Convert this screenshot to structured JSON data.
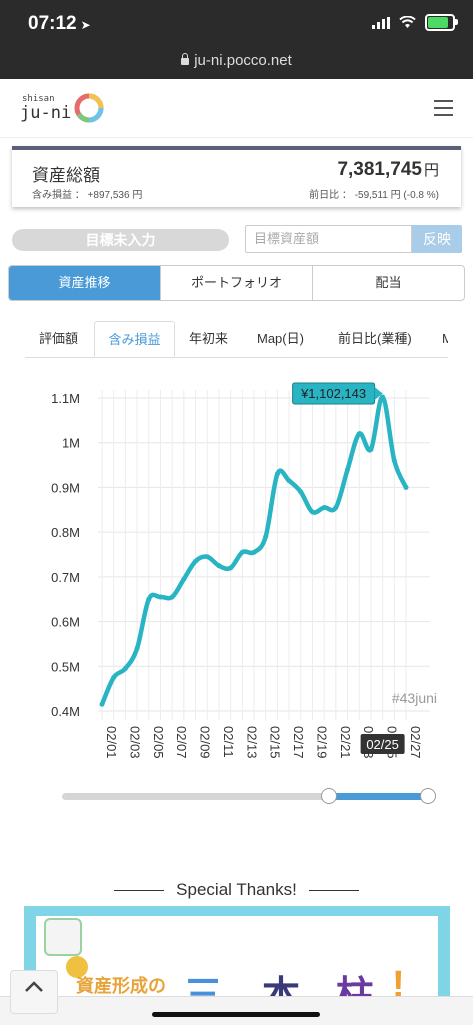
{
  "status_bar": {
    "time": "07:12",
    "url": "ju-ni.pocco.net"
  },
  "header": {
    "logo_small": "shisan",
    "logo_main": "ju-ni"
  },
  "summary": {
    "label": "資産総額",
    "value": "7,381,745",
    "unit": "円",
    "gain_text": "含み損益 ： +897,536 円",
    "diff_text": "前日比 ： -59,511 円 (-0.8 %)"
  },
  "target": {
    "pill_label": "目標未入力",
    "input_placeholder": "目標資産額",
    "button_label": "反映"
  },
  "main_tabs": [
    {
      "label": "資産推移",
      "active": true
    },
    {
      "label": "ポートフォリオ",
      "active": false
    },
    {
      "label": "配当",
      "active": false
    }
  ],
  "sub_tabs": [
    {
      "label": "評価額",
      "active": false
    },
    {
      "label": "含み損益",
      "active": true
    },
    {
      "label": "年初来",
      "active": false
    },
    {
      "label": "Map(日)",
      "active": false
    },
    {
      "label": "前日比(業種)",
      "active": false
    },
    {
      "label": "M",
      "active": false
    }
  ],
  "chart_data": {
    "type": "line",
    "x": [
      "02/01",
      "02/02",
      "02/03",
      "02/04",
      "02/05",
      "02/06",
      "02/07",
      "02/08",
      "02/09",
      "02/10",
      "02/11",
      "02/12",
      "02/13",
      "02/14",
      "02/15",
      "02/16",
      "02/17",
      "02/18",
      "02/19",
      "02/20",
      "02/21",
      "02/22",
      "02/23",
      "02/24",
      "02/25",
      "02/26",
      "02/27"
    ],
    "x_tick_labels": [
      "02/01",
      "02/03",
      "02/05",
      "02/07",
      "02/09",
      "02/11",
      "02/13",
      "02/15",
      "02/17",
      "02/19",
      "02/21",
      "02/23",
      "02/25",
      "02/27"
    ],
    "y": [
      415000,
      475000,
      495000,
      540000,
      650000,
      655000,
      655000,
      695000,
      735000,
      745000,
      725000,
      720000,
      755000,
      755000,
      790000,
      930000,
      915000,
      890000,
      845000,
      855000,
      855000,
      940000,
      1020000,
      985000,
      1102143,
      960000,
      900000
    ],
    "y_ticks": [
      400000,
      500000,
      600000,
      700000,
      800000,
      900000,
      1000000,
      1100000
    ],
    "y_tick_labels": [
      "0.4M",
      "0.5M",
      "0.6M",
      "0.7M",
      "0.8M",
      "0.9M",
      "1M",
      "1.1M"
    ],
    "ylim": [
      400000,
      1120000
    ],
    "grid": true,
    "line_color": "#29b4c4",
    "tooltip": {
      "value_label": "¥1,102,143",
      "date_label": "02/25"
    },
    "watermark": "#43juni"
  },
  "slider": {
    "start_fraction": 0.73,
    "end_fraction": 1.0
  },
  "special": {
    "title": "Special Thanks!",
    "banner_text": "資産形成の",
    "banner_chars": [
      "三",
      "本",
      "柱",
      "!"
    ]
  }
}
